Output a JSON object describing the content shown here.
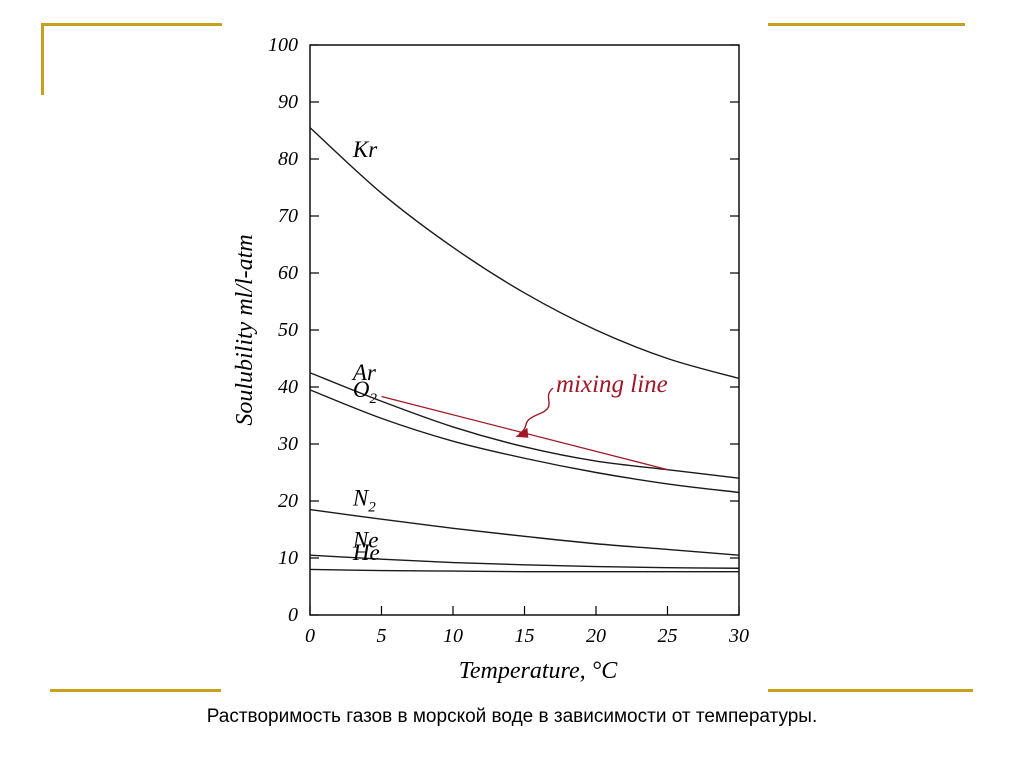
{
  "caption": "Растворимость газов в морской воде в зависимости от температуры.",
  "colors": {
    "frame": "#c8a020",
    "axis": "#000000",
    "curve": "#1a1a1a",
    "mixing": "#a01828"
  },
  "chart_data": {
    "type": "line",
    "title": "",
    "xlabel": "Temperature, °C",
    "ylabel": "Soulubility ml/l-atm",
    "xlim": [
      0,
      30
    ],
    "ylim": [
      0,
      100
    ],
    "xticks": [
      0,
      5,
      10,
      15,
      20,
      25,
      30
    ],
    "yticks": [
      0,
      10,
      20,
      30,
      40,
      50,
      60,
      70,
      80,
      90,
      100
    ],
    "x": [
      0,
      5,
      10,
      15,
      20,
      25,
      30
    ],
    "series": [
      {
        "name": "Kr",
        "label": "Kr",
        "label_sub": "",
        "values": [
          85.5,
          74.0,
          64.5,
          56.5,
          50.0,
          45.0,
          41.5
        ]
      },
      {
        "name": "Ar",
        "label": "Ar",
        "label_sub": "",
        "values": [
          42.5,
          37.5,
          33.0,
          29.5,
          27.0,
          25.5,
          24.0
        ]
      },
      {
        "name": "O2",
        "label": "O",
        "label_sub": "2",
        "values": [
          39.5,
          34.5,
          30.5,
          27.5,
          25.0,
          23.0,
          21.5
        ]
      },
      {
        "name": "N2",
        "label": "N",
        "label_sub": "2",
        "values": [
          18.5,
          16.8,
          15.2,
          13.8,
          12.5,
          11.5,
          10.5
        ]
      },
      {
        "name": "Ne",
        "label": "Ne",
        "label_sub": "",
        "values": [
          10.5,
          9.8,
          9.2,
          8.8,
          8.5,
          8.3,
          8.2
        ]
      },
      {
        "name": "He",
        "label": "He",
        "label_sub": "",
        "values": [
          8.0,
          7.8,
          7.7,
          7.6,
          7.6,
          7.6,
          7.6
        ]
      }
    ],
    "annotations": [
      {
        "text": "mixing line",
        "from": [
          5,
          38.5
        ],
        "to": [
          25,
          25.5
        ]
      }
    ]
  }
}
